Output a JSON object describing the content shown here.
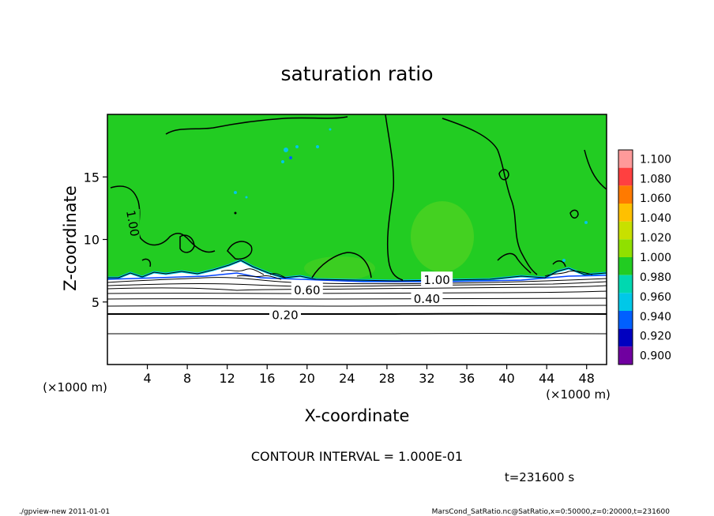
{
  "chart_data": {
    "type": "contour",
    "title": "saturation ratio",
    "xlabel": "X-coordinate",
    "ylabel": "Z-coordinate",
    "x_unit_left": "(×1000 m)",
    "x_unit_right": "(×1000 m)",
    "xlim": [
      0,
      50
    ],
    "ylim": [
      0,
      20
    ],
    "xticks": [
      "4",
      "8",
      "12",
      "16",
      "20",
      "24",
      "28",
      "32",
      "36",
      "40",
      "44",
      "48"
    ],
    "xtick_values": [
      4,
      8,
      12,
      16,
      20,
      24,
      28,
      32,
      36,
      40,
      44,
      48
    ],
    "yticks": [
      "5",
      "10",
      "15"
    ],
    "ytick_values": [
      5,
      10,
      15
    ],
    "contour_interval_label": "CONTOUR INTERVAL = 1.000E-01",
    "time_label": "t=231600 s",
    "contour_labels": [
      {
        "text": "1.00",
        "x": 2.6,
        "z": 11.3,
        "rotated": true
      },
      {
        "text": "0.60",
        "x": 20.0,
        "z": 6.0
      },
      {
        "text": "1.00",
        "x": 33.0,
        "z": 6.8
      },
      {
        "text": "0.40",
        "x": 32.0,
        "z": 5.3
      },
      {
        "text": "0.20",
        "x": 17.8,
        "z": 4.0
      }
    ],
    "colorbar": {
      "levels": [
        "1.100",
        "1.080",
        "1.060",
        "1.040",
        "1.020",
        "1.000",
        "0.980",
        "0.960",
        "0.940",
        "0.920",
        "0.900"
      ],
      "colors": [
        "#ff9a9a",
        "#ff4040",
        "#ff7a00",
        "#ffc000",
        "#c8e000",
        "#90e000",
        "#22cc22",
        "#00d8b0",
        "#00c8e8",
        "#0060ff",
        "#0000c0",
        "#7000a0"
      ]
    },
    "fill_regions": {
      "background_color": "#22cc22",
      "subsaturated_color": "#ffffff",
      "boundary_color": "#00c8e8"
    }
  },
  "footer": {
    "left": "./gpview-new  2011-01-01",
    "right": "MarsCond_SatRatio.nc@SatRatio,x=0:50000,z=0:20000,t=231600"
  }
}
